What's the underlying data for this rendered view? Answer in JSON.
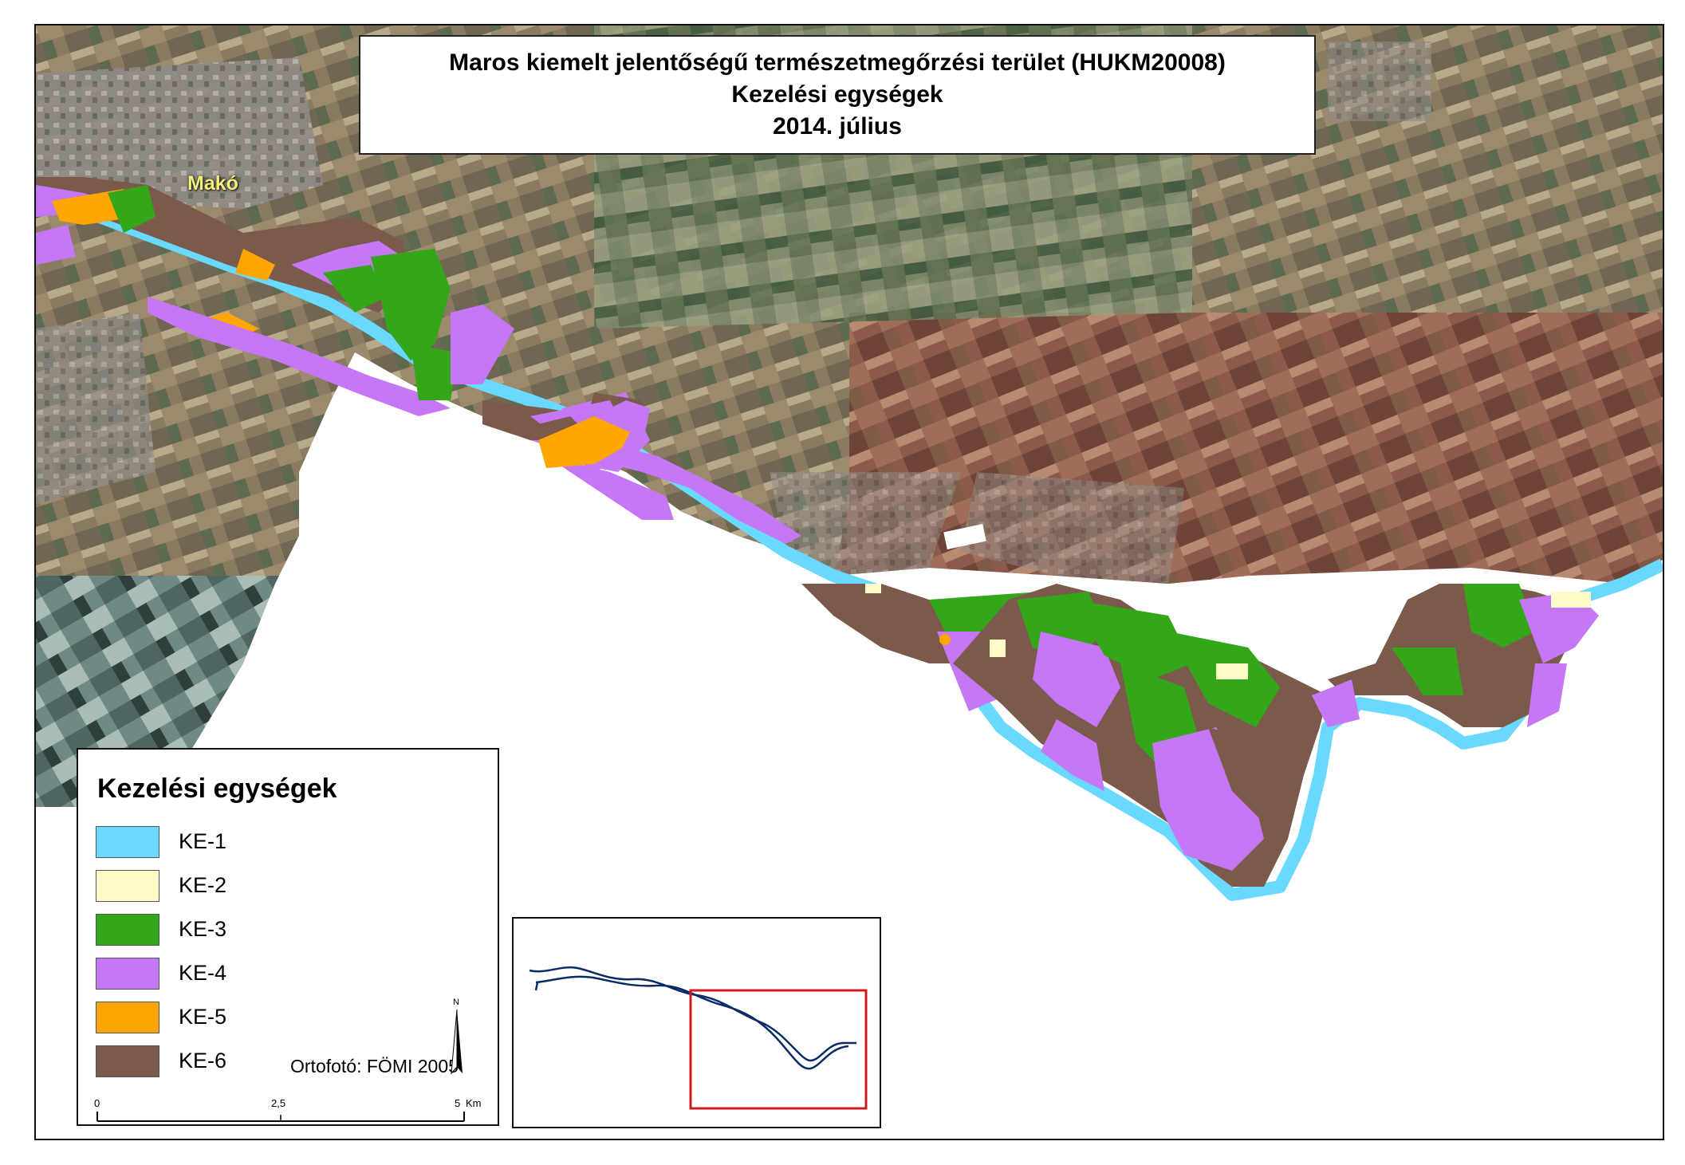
{
  "title": {
    "line1": "Maros kiemelt jelentőségű természetmegőrzési terület (HUKM20008)",
    "line2": "Kezelési egységek",
    "line3": "2014. július"
  },
  "city_label": "Makó",
  "legend": {
    "title": "Kezelési egységek",
    "items": [
      {
        "label": "KE-1",
        "color": "#69d9ff"
      },
      {
        "label": "KE-2",
        "color": "#fffbc8"
      },
      {
        "label": "KE-3",
        "color": "#33a619"
      },
      {
        "label": "KE-4",
        "color": "#c677f5"
      },
      {
        "label": "KE-5",
        "color": "#ffa600"
      },
      {
        "label": "KE-6",
        "color": "#7b5a4c"
      }
    ],
    "credit": "Ortofotó: FÖMI 2005",
    "north_label": "N",
    "scale": {
      "ticks": [
        "0",
        "2,5",
        "5"
      ],
      "unit": "Km"
    }
  },
  "inset": {
    "highlight_color": "#cc1e1e",
    "river_color": "#0c2b66"
  }
}
